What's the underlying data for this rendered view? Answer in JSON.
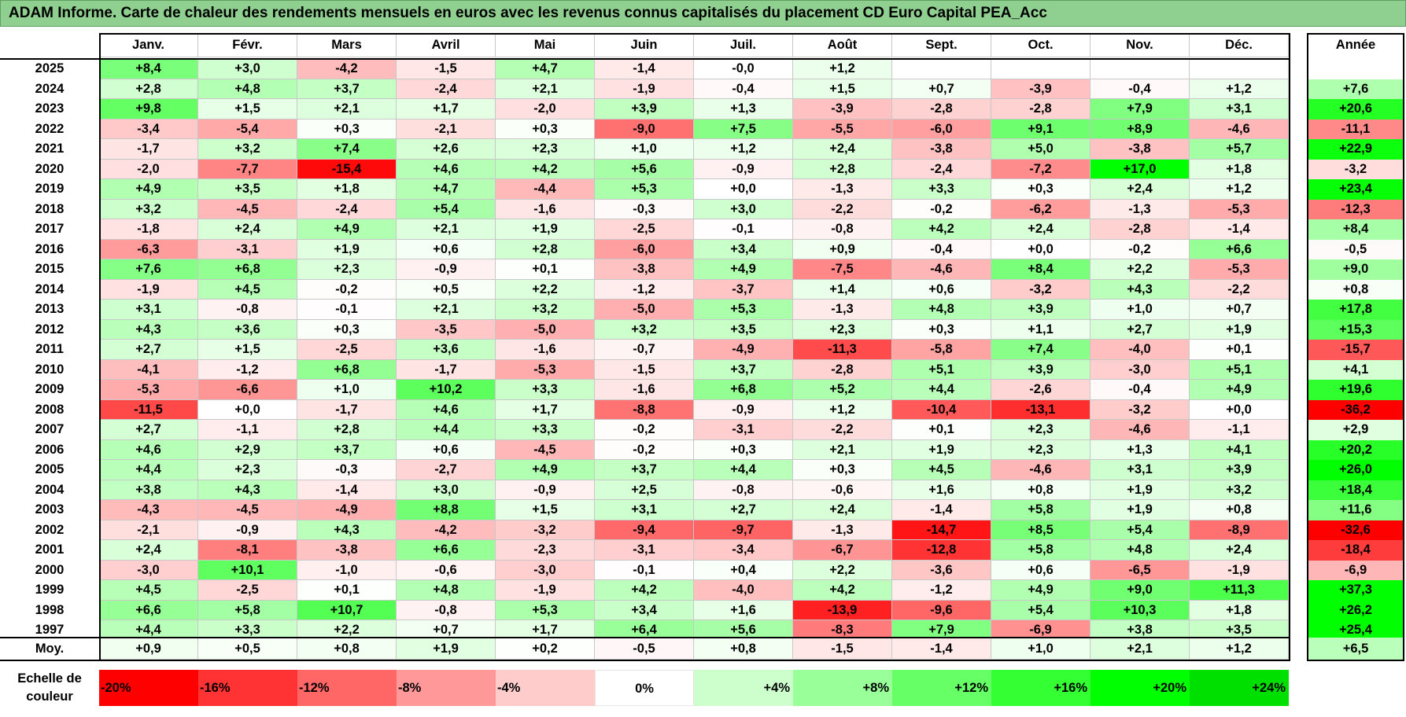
{
  "title": "ADAM Informe. Carte de chaleur des rendements mensuels en euros avec les revenus connus capitalisés du placement CD Euro Capital PEA_Acc",
  "chart_data": {
    "type": "heatmap",
    "title": "ADAM Informe. Carte de chaleur des rendements mensuels en euros avec les revenus connus capitalisés du placement CD Euro Capital PEA_Acc",
    "months": [
      "Janv.",
      "Févr.",
      "Mars",
      "Avril",
      "Mai",
      "Juin",
      "Juil.",
      "Août",
      "Sept.",
      "Oct.",
      "Nov.",
      "Déc."
    ],
    "year_header": "Année",
    "rows": [
      {
        "year": "2025",
        "values": [
          "+8,4",
          "+3,0",
          "-4,2",
          "-1,5",
          "+4,7",
          "-1,4",
          "-0,0",
          "+1,2",
          "",
          "",
          "",
          ""
        ],
        "annual": ""
      },
      {
        "year": "2024",
        "values": [
          "+2,8",
          "+4,8",
          "+3,7",
          "-2,4",
          "+2,1",
          "-1,9",
          "-0,4",
          "+1,5",
          "+0,7",
          "-3,9",
          "-0,4",
          "+1,2"
        ],
        "annual": "+7,6"
      },
      {
        "year": "2023",
        "values": [
          "+9,8",
          "+1,5",
          "+2,1",
          "+1,7",
          "-2,0",
          "+3,9",
          "+1,3",
          "-3,9",
          "-2,8",
          "-2,8",
          "+7,9",
          "+3,1"
        ],
        "annual": "+20,6"
      },
      {
        "year": "2022",
        "values": [
          "-3,4",
          "-5,4",
          "+0,3",
          "-2,1",
          "+0,3",
          "-9,0",
          "+7,5",
          "-5,5",
          "-6,0",
          "+9,1",
          "+8,9",
          "-4,6"
        ],
        "annual": "-11,1"
      },
      {
        "year": "2021",
        "values": [
          "-1,7",
          "+3,2",
          "+7,4",
          "+2,6",
          "+2,3",
          "+1,0",
          "+1,2",
          "+2,4",
          "-3,8",
          "+5,0",
          "-3,8",
          "+5,7"
        ],
        "annual": "+22,9"
      },
      {
        "year": "2020",
        "values": [
          "-2,0",
          "-7,7",
          "-15,4",
          "+4,6",
          "+4,2",
          "+5,6",
          "-0,9",
          "+2,8",
          "-2,4",
          "-7,2",
          "+17,0",
          "+1,8"
        ],
        "annual": "-3,2"
      },
      {
        "year": "2019",
        "values": [
          "+4,9",
          "+3,5",
          "+1,8",
          "+4,7",
          "-4,4",
          "+5,3",
          "+0,0",
          "-1,3",
          "+3,3",
          "+0,3",
          "+2,4",
          "+1,2"
        ],
        "annual": "+23,4"
      },
      {
        "year": "2018",
        "values": [
          "+3,2",
          "-4,5",
          "-2,4",
          "+5,4",
          "-1,6",
          "-0,3",
          "+3,0",
          "-2,2",
          "-0,2",
          "-6,2",
          "-1,3",
          "-5,3"
        ],
        "annual": "-12,3"
      },
      {
        "year": "2017",
        "values": [
          "-1,8",
          "+2,4",
          "+4,9",
          "+2,1",
          "+1,9",
          "-2,5",
          "-0,1",
          "-0,8",
          "+4,2",
          "+2,4",
          "-2,8",
          "-1,4"
        ],
        "annual": "+8,4"
      },
      {
        "year": "2016",
        "values": [
          "-6,3",
          "-3,1",
          "+1,9",
          "+0,6",
          "+2,8",
          "-6,0",
          "+3,4",
          "+0,9",
          "-0,4",
          "+0,0",
          "-0,2",
          "+6,6"
        ],
        "annual": "-0,5"
      },
      {
        "year": "2015",
        "values": [
          "+7,6",
          "+6,8",
          "+2,3",
          "-0,9",
          "+0,1",
          "-3,8",
          "+4,9",
          "-7,5",
          "-4,6",
          "+8,4",
          "+2,2",
          "-5,3"
        ],
        "annual": "+9,0"
      },
      {
        "year": "2014",
        "values": [
          "-1,9",
          "+4,5",
          "-0,2",
          "+0,5",
          "+2,2",
          "-1,2",
          "-3,7",
          "+1,4",
          "+0,6",
          "-3,2",
          "+4,3",
          "-2,2"
        ],
        "annual": "+0,8"
      },
      {
        "year": "2013",
        "values": [
          "+3,1",
          "-0,8",
          "-0,1",
          "+2,1",
          "+3,2",
          "-5,0",
          "+5,3",
          "-1,3",
          "+4,8",
          "+3,9",
          "+1,0",
          "+0,7"
        ],
        "annual": "+17,8"
      },
      {
        "year": "2012",
        "values": [
          "+4,3",
          "+3,6",
          "+0,3",
          "-3,5",
          "-5,0",
          "+3,2",
          "+3,5",
          "+2,3",
          "+0,3",
          "+1,1",
          "+2,7",
          "+1,9"
        ],
        "annual": "+15,3"
      },
      {
        "year": "2011",
        "values": [
          "+2,7",
          "+1,5",
          "-2,5",
          "+3,6",
          "-1,6",
          "-0,7",
          "-4,9",
          "-11,3",
          "-5,8",
          "+7,4",
          "-4,0",
          "+0,1"
        ],
        "annual": "-15,7"
      },
      {
        "year": "2010",
        "values": [
          "-4,1",
          "-1,2",
          "+6,8",
          "-1,7",
          "-5,3",
          "-1,5",
          "+3,7",
          "-2,8",
          "+5,1",
          "+3,9",
          "-3,0",
          "+5,1"
        ],
        "annual": "+4,1"
      },
      {
        "year": "2009",
        "values": [
          "-5,3",
          "-6,6",
          "+1,0",
          "+10,2",
          "+3,3",
          "-1,6",
          "+6,8",
          "+5,2",
          "+4,4",
          "-2,6",
          "-0,4",
          "+4,9"
        ],
        "annual": "+19,6"
      },
      {
        "year": "2008",
        "values": [
          "-11,5",
          "+0,0",
          "-1,7",
          "+4,6",
          "+1,7",
          "-8,8",
          "-0,9",
          "+1,2",
          "-10,4",
          "-13,1",
          "-3,2",
          "+0,0"
        ],
        "annual": "-36,2"
      },
      {
        "year": "2007",
        "values": [
          "+2,7",
          "-1,1",
          "+2,8",
          "+4,4",
          "+3,3",
          "-0,2",
          "-3,1",
          "-2,2",
          "+0,1",
          "+2,3",
          "-4,6",
          "-1,1"
        ],
        "annual": "+2,9"
      },
      {
        "year": "2006",
        "values": [
          "+4,6",
          "+2,9",
          "+3,7",
          "+0,6",
          "-4,5",
          "-0,2",
          "+0,3",
          "+2,1",
          "+1,9",
          "+2,3",
          "+1,3",
          "+4,1"
        ],
        "annual": "+20,2"
      },
      {
        "year": "2005",
        "values": [
          "+4,4",
          "+2,3",
          "-0,3",
          "-2,7",
          "+4,9",
          "+3,7",
          "+4,4",
          "+0,3",
          "+4,5",
          "-4,6",
          "+3,1",
          "+3,9"
        ],
        "annual": "+26,0"
      },
      {
        "year": "2004",
        "values": [
          "+3,8",
          "+4,3",
          "-1,4",
          "+3,0",
          "-0,9",
          "+2,5",
          "-0,8",
          "-0,6",
          "+1,6",
          "+0,8",
          "+1,9",
          "+3,2"
        ],
        "annual": "+18,4"
      },
      {
        "year": "2003",
        "values": [
          "-4,3",
          "-4,5",
          "-4,9",
          "+8,8",
          "+1,5",
          "+3,1",
          "+2,7",
          "+2,4",
          "-1,4",
          "+5,8",
          "+1,9",
          "+0,8"
        ],
        "annual": "+11,6"
      },
      {
        "year": "2002",
        "values": [
          "-2,1",
          "-0,9",
          "+4,3",
          "-4,2",
          "-3,2",
          "-9,4",
          "-9,7",
          "-1,3",
          "-14,7",
          "+8,5",
          "+5,4",
          "-8,9"
        ],
        "annual": "-32,6"
      },
      {
        "year": "2001",
        "values": [
          "+2,4",
          "-8,1",
          "-3,8",
          "+6,6",
          "-2,3",
          "-3,1",
          "-3,4",
          "-6,7",
          "-12,8",
          "+5,8",
          "+4,8",
          "+2,4"
        ],
        "annual": "-18,4"
      },
      {
        "year": "2000",
        "values": [
          "-3,0",
          "+10,1",
          "-1,0",
          "-0,6",
          "-3,0",
          "-0,1",
          "+0,4",
          "+2,2",
          "-3,6",
          "+0,6",
          "-6,5",
          "-1,9"
        ],
        "annual": "-6,9"
      },
      {
        "year": "1999",
        "values": [
          "+4,5",
          "-2,5",
          "+0,1",
          "+4,8",
          "-1,9",
          "+4,2",
          "-4,0",
          "+4,2",
          "-1,2",
          "+4,9",
          "+9,0",
          "+11,3"
        ],
        "annual": "+37,3"
      },
      {
        "year": "1998",
        "values": [
          "+6,6",
          "+5,8",
          "+10,7",
          "-0,8",
          "+5,3",
          "+3,4",
          "+1,6",
          "-13,9",
          "-9,6",
          "+5,4",
          "+10,3",
          "+1,8"
        ],
        "annual": "+26,2"
      },
      {
        "year": "1997",
        "values": [
          "+4,4",
          "+3,3",
          "+2,2",
          "+0,7",
          "+1,7",
          "+6,4",
          "+5,6",
          "-8,3",
          "+7,9",
          "-6,9",
          "+3,8",
          "+3,5"
        ],
        "annual": "+25,4"
      }
    ],
    "average": {
      "label": "Moy.",
      "values": [
        "+0,9",
        "+0,5",
        "+0,8",
        "+1,9",
        "+0,2",
        "-0,5",
        "+0,8",
        "-1,5",
        "-1,4",
        "+1,0",
        "+2,1",
        "+1,2"
      ],
      "annual": "+6,5"
    },
    "scale": {
      "label_line1": "Echelle de",
      "label_line2": "couleur",
      "steps": [
        {
          "label": "-20%",
          "value": -20,
          "color": "#ff0000"
        },
        {
          "label": "-16%",
          "value": -16,
          "color": "#ff3333"
        },
        {
          "label": "-12%",
          "value": -12,
          "color": "#ff6666"
        },
        {
          "label": "-8%",
          "value": -8,
          "color": "#ff9999"
        },
        {
          "label": "-4%",
          "value": -4,
          "color": "#ffcccc"
        },
        {
          "label": "0%",
          "value": 0,
          "color": "#ffffff"
        },
        {
          "label": "+4%",
          "value": 4,
          "color": "#ccffcc"
        },
        {
          "label": "+8%",
          "value": 8,
          "color": "#99ff99"
        },
        {
          "label": "+12%",
          "value": 12,
          "color": "#66ff66"
        },
        {
          "label": "+16%",
          "value": 16,
          "color": "#33ff33"
        },
        {
          "label": "+20%",
          "value": 20,
          "color": "#00ff00"
        },
        {
          "label": "+24%",
          "value": 24,
          "color": "#00e000"
        }
      ]
    }
  }
}
